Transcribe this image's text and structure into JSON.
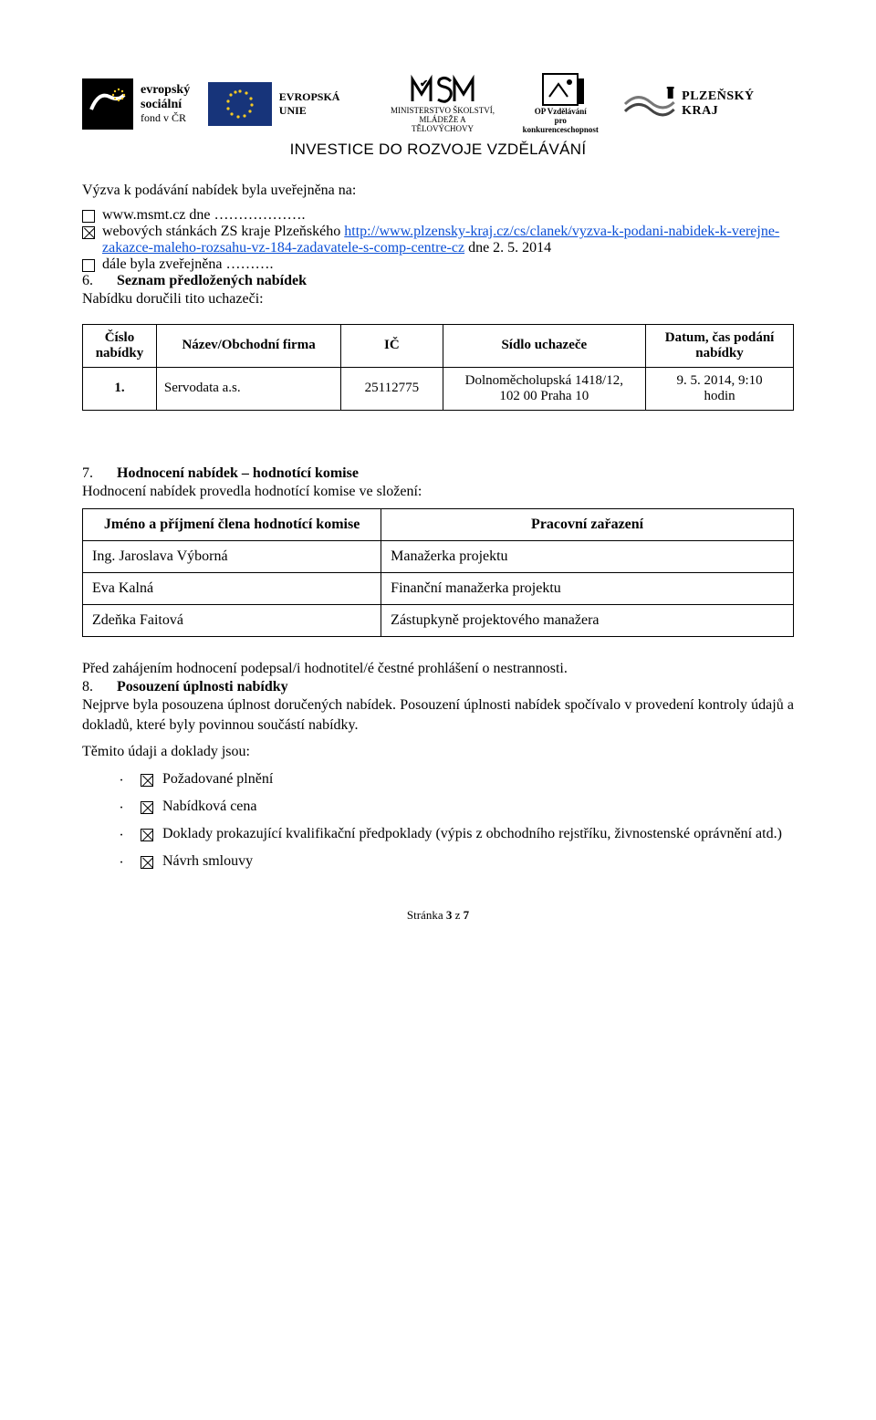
{
  "header": {
    "esf": {
      "line1": "evropský",
      "line2": "sociální",
      "line3": "fond v ČR"
    },
    "eu_label": "EVROPSKÁ UNIE",
    "msmt_line1": "MINISTERSTVO ŠKOLSTVÍ,",
    "msmt_line2": "MLÁDEŽE A TĚLOVÝCHOVY",
    "op_line1": "OP Vzdělávání",
    "op_line2": "pro konkurenceschopnost",
    "kraj": "PLZEŇSKÝ KRAJ",
    "investice": "INVESTICE DO ROZVOJE VZDĚLÁVÁNÍ"
  },
  "intro": {
    "title": "Výzva k podávání nabídek byla uveřejněna na:",
    "line1_prefix": "www.msmt.cz dne ……………….",
    "line2_prefix": "webových stánkách ZS kraje Plzeňského ",
    "line2_link_text": "http://www.plzensky-kraj.cz/cs/clanek/vyzva-k-podani-nabidek-k-verejne-zakazce-maleho-rozsahu-vz-184-zadavatele-s-comp-centre-cz",
    "line2_suffix": " dne 2. 5. 2014",
    "line3": "dále byla zveřejněna ………."
  },
  "sec6": {
    "num": "6.",
    "title": "Seznam předložených nabídek",
    "subtitle": "Nabídku doručili tito uchazeči:",
    "columns": [
      "Číslo nabídky",
      "Název/Obchodní firma",
      "IČ",
      "Sídlo uchazeče",
      "Datum, čas podání nabídky"
    ],
    "rows": [
      {
        "cislo": "1.",
        "nazev": "Servodata a.s.",
        "ic": "25112775",
        "sidlo_l1": "Dolnoměcholupská 1418/12,",
        "sidlo_l2": "102 00 Praha 10",
        "datum_l1": "9. 5. 2014, 9:10",
        "datum_l2": "hodin"
      }
    ],
    "col_widths": [
      "80px",
      "200px",
      "110px",
      "220px",
      "160px"
    ]
  },
  "sec7": {
    "num": "7.",
    "title": "Hodnocení nabídek – hodnotící komise",
    "subtitle": "Hodnocení nabídek provedla hodnotící komise ve složení:",
    "header_left": "Jméno a příjmení člena hodnotící komise",
    "header_right": "Pracovní zařazení",
    "rows": [
      {
        "name": "Ing. Jaroslava Výborná",
        "role": "Manažerka projektu"
      },
      {
        "name": "Eva Kalná",
        "role": "Finanční manažerka projektu"
      },
      {
        "name": "Zdeňka Faitová",
        "role": "Zástupkyně projektového manažera"
      }
    ],
    "note": "Před zahájením hodnocení podepsal/i hodnotitel/é čestné prohlášení o nestrannosti."
  },
  "sec8": {
    "num": "8.",
    "title": "Posouzení úplnosti nabídky",
    "para": "Nejprve byla posouzena úplnost doručených nabídek. Posouzení úplnosti nabídek spočívalo v provedení kontroly údajů a dokladů, které byly povinnou součástí nabídky.",
    "lead": "Těmito údaji a doklady jsou:",
    "items": [
      "Požadované plnění",
      "Nabídková cena",
      "Doklady prokazující kvalifikační předpoklady (výpis z obchodního rejstříku, živnostenské oprávnění atd.)",
      "Návrh smlouvy"
    ]
  },
  "footer": {
    "text_prefix": "Stránka ",
    "page": "3",
    "of_word": " z ",
    "total": "7"
  }
}
